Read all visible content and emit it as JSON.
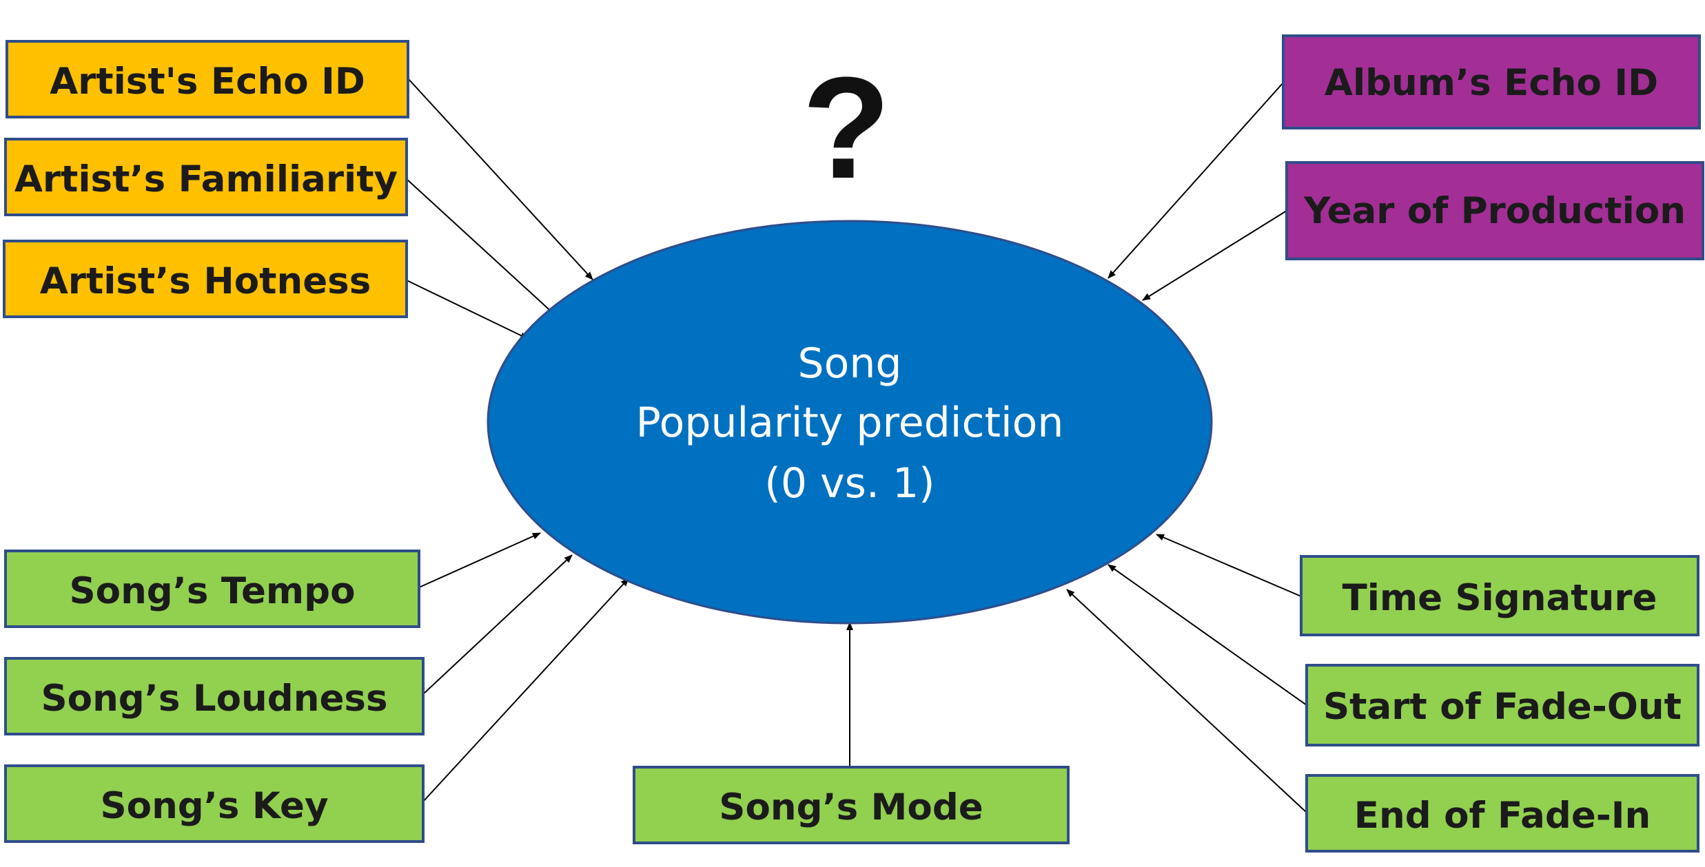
{
  "diagram": {
    "question_mark": "?",
    "center": {
      "line1": "Song",
      "line2": "Popularity prediction",
      "line3": "(0 vs. 1)"
    },
    "colors": {
      "artist": "#FFC000",
      "album": "#A22E96",
      "song": "#92D050",
      "center": "#0070C0",
      "border": "#2F4D8A",
      "arrow": "#000000"
    },
    "nodes": {
      "artist_echo_id": "Artist's Echo ID",
      "artist_familiarity": "Artist’s Familiarity",
      "artist_hotness": "Artist’s Hotness",
      "album_echo_id": "Album’s Echo ID",
      "year_of_production": "Year of Production",
      "song_tempo": "Song’s Tempo",
      "song_loudness": "Song’s Loudness",
      "song_key": "Song’s Key",
      "song_mode": "Song’s Mode",
      "time_signature": "Time Signature",
      "start_of_fade_out": "Start of Fade-Out",
      "end_of_fade_in": "End of Fade-In"
    }
  }
}
